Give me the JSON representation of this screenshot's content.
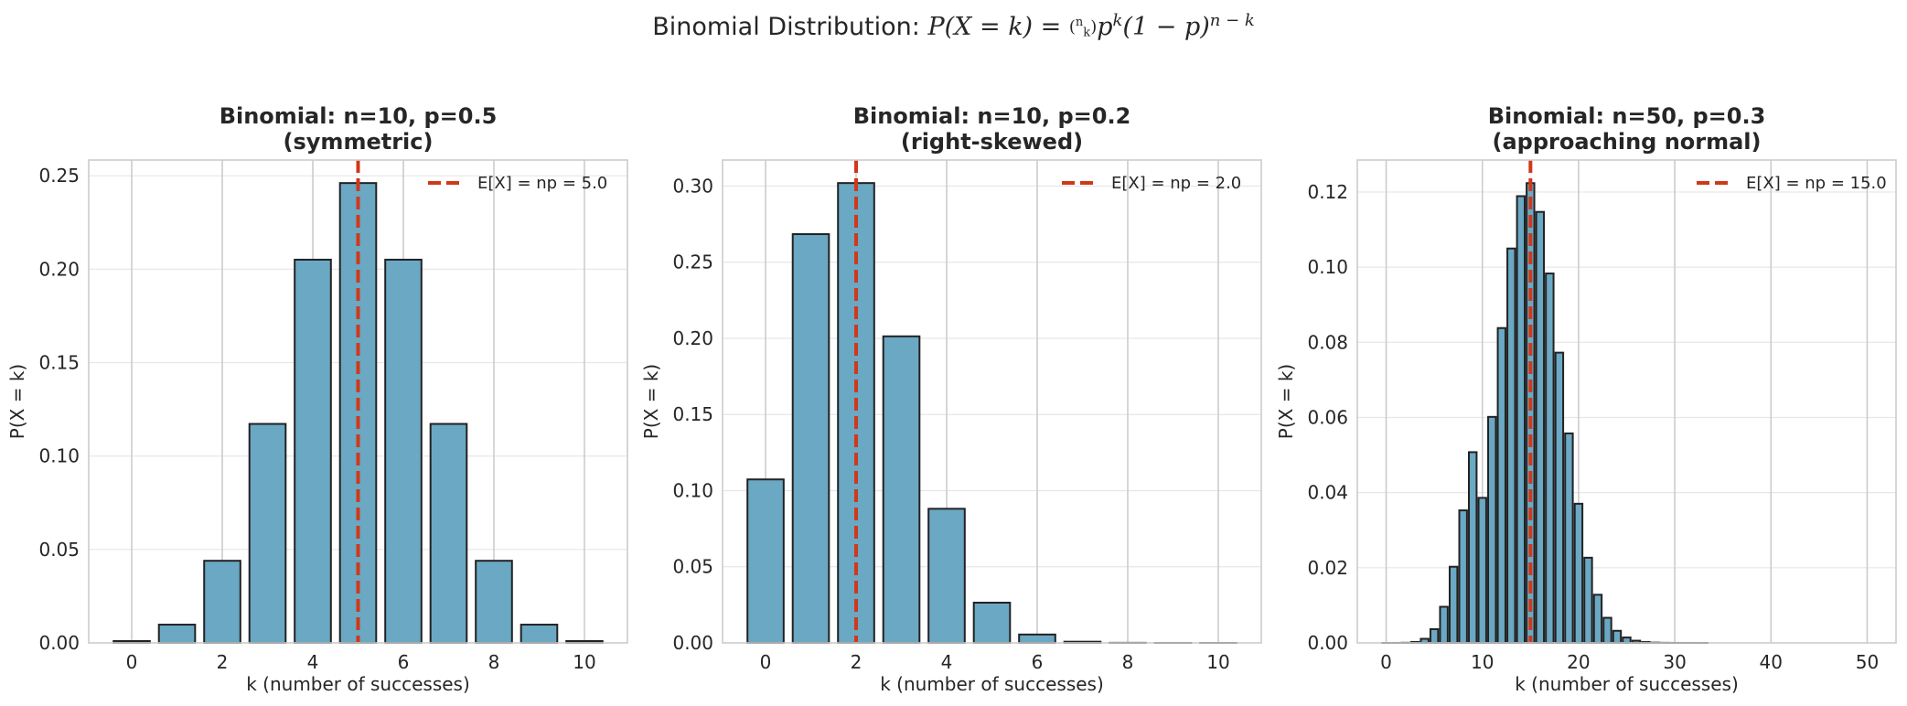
{
  "figure": {
    "suptitle_prefix": "Binomial Distribution: ",
    "suptitle_formula": "P(X = k) = (n k) p^k (1 − p)^(n − k)"
  },
  "colors": {
    "bar": "#6aa8c4",
    "bar_edge": "#222222",
    "mean_line": "#d0381a"
  },
  "chart_data": [
    {
      "type": "bar",
      "title": [
        "Binomial: n=10, p=0.5",
        "(symmetric)"
      ],
      "xlabel": "k (number of successes)",
      "ylabel": "P(X = k)",
      "x": [
        0,
        1,
        2,
        3,
        4,
        5,
        6,
        7,
        8,
        9,
        10
      ],
      "values": [
        0.00098,
        0.00977,
        0.04395,
        0.11719,
        0.20508,
        0.24609,
        0.20508,
        0.11719,
        0.04395,
        0.00977,
        0.00098
      ],
      "xlim": [
        -0.95,
        10.95
      ],
      "ylim": [
        0,
        0.2584
      ],
      "xticks": [
        0,
        2,
        4,
        6,
        8,
        10
      ],
      "xtick_labels": [
        "0",
        "2",
        "4",
        "6",
        "8",
        "10"
      ],
      "yticks": [
        0,
        0.05,
        0.1,
        0.15,
        0.2,
        0.25
      ],
      "ytick_labels": [
        "0.00",
        "0.05",
        "0.10",
        "0.15",
        "0.20",
        "0.25"
      ],
      "mean": 5.0,
      "legend": "E[X] = np = 5.0",
      "legend_position": "upper right",
      "grid": true
    },
    {
      "type": "bar",
      "title": [
        "Binomial: n=10, p=0.2",
        "(right-skewed)"
      ],
      "xlabel": "k (number of successes)",
      "ylabel": "P(X = k)",
      "x": [
        0,
        1,
        2,
        3,
        4,
        5,
        6,
        7,
        8,
        9,
        10
      ],
      "values": [
        0.10737,
        0.26844,
        0.30199,
        0.20133,
        0.08808,
        0.02642,
        0.00551,
        0.00079,
        7e-05,
        4e-06,
        1e-07
      ],
      "xlim": [
        -0.95,
        10.95
      ],
      "ylim": [
        0,
        0.3171
      ],
      "xticks": [
        0,
        2,
        4,
        6,
        8,
        10
      ],
      "xtick_labels": [
        "0",
        "2",
        "4",
        "6",
        "8",
        "10"
      ],
      "yticks": [
        0,
        0.05,
        0.1,
        0.15,
        0.2,
        0.25,
        0.3
      ],
      "ytick_labels": [
        "0.00",
        "0.05",
        "0.10",
        "0.15",
        "0.20",
        "0.25",
        "0.30"
      ],
      "mean": 2.0,
      "legend": "E[X] = np = 2.0",
      "legend_position": "upper right",
      "grid": true
    },
    {
      "type": "bar",
      "title": [
        "Binomial: n=50, p=0.3",
        "(approaching normal)"
      ],
      "xlabel": "k (number of successes)",
      "ylabel": "P(X = k)",
      "x": [
        0,
        1,
        2,
        3,
        4,
        5,
        6,
        7,
        8,
        9,
        10,
        11,
        12,
        13,
        14,
        15,
        16,
        17,
        18,
        19,
        20,
        21,
        22,
        23,
        24,
        25,
        26,
        27,
        28,
        29,
        30,
        31,
        32,
        33,
        34,
        35,
        36,
        37,
        38,
        39,
        40,
        41,
        42,
        43,
        44,
        45,
        46,
        47,
        48,
        49,
        50
      ],
      "values": [
        2e-07,
        4e-06,
        4e-05,
        0.000245,
        0.00109,
        0.00365,
        0.00961,
        0.02027,
        0.03527,
        0.05076,
        0.0386,
        0.06015,
        0.08379,
        0.10496,
        0.11889,
        0.12235,
        0.1147,
        0.09831,
        0.07724,
        0.05575,
        0.03703,
        0.02267,
        0.01281,
        0.00668,
        0.00322,
        0.00144,
        0.00059,
        0.00023,
        8.2e-05,
        2.7e-05,
        8.3e-06,
        2.3e-06,
        6e-07,
        1e-07,
        0,
        0,
        0,
        0,
        0,
        0,
        0,
        0,
        0,
        0,
        0,
        0,
        0,
        0,
        0,
        0,
        0
      ],
      "xlim": [
        -3.0,
        53.0
      ],
      "ylim": [
        0,
        0.1285
      ],
      "xticks": [
        0,
        10,
        20,
        30,
        40,
        50
      ],
      "xtick_labels": [
        "0",
        "10",
        "20",
        "30",
        "40",
        "50"
      ],
      "yticks": [
        0,
        0.02,
        0.04,
        0.06,
        0.08,
        0.1,
        0.12
      ],
      "ytick_labels": [
        "0.00",
        "0.02",
        "0.04",
        "0.06",
        "0.08",
        "0.10",
        "0.12"
      ],
      "mean": 15.0,
      "legend": "E[X] = np = 15.0",
      "legend_position": "upper right",
      "grid": true
    }
  ]
}
